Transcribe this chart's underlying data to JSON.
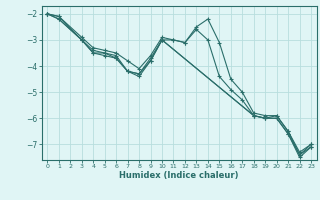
{
  "xlabel": "Humidex (Indice chaleur)",
  "bg_color": "#e0f5f5",
  "grid_color": "#b8dede",
  "line_color": "#2a6e6a",
  "xlim": [
    -0.5,
    23.5
  ],
  "ylim": [
    -7.6,
    -1.7
  ],
  "yticks": [
    -7,
    -6,
    -5,
    -4,
    -3,
    -2
  ],
  "xticks": [
    0,
    1,
    2,
    3,
    4,
    5,
    6,
    7,
    8,
    9,
    10,
    11,
    12,
    13,
    14,
    15,
    16,
    17,
    18,
    19,
    20,
    21,
    22,
    23
  ],
  "lines": [
    {
      "x": [
        0,
        1,
        3,
        4,
        5,
        6,
        7,
        8,
        9,
        10,
        11,
        12,
        13,
        14,
        15,
        16,
        17,
        18,
        19,
        20,
        21,
        22,
        23
      ],
      "y": [
        -2.0,
        -2.1,
        -2.9,
        -3.3,
        -3.4,
        -3.5,
        -3.8,
        -4.1,
        -3.6,
        -2.9,
        -3.0,
        -3.1,
        -2.5,
        -2.2,
        -3.1,
        -4.5,
        -5.0,
        -5.8,
        -5.9,
        -5.9,
        -6.5,
        -7.3,
        -7.0
      ]
    },
    {
      "x": [
        0,
        1,
        3,
        4,
        5,
        6,
        7,
        8,
        9,
        10,
        11,
        12,
        13,
        14,
        15,
        16,
        17,
        18,
        19,
        20,
        21,
        22,
        23
      ],
      "y": [
        -2.0,
        -2.1,
        -3.0,
        -3.4,
        -3.5,
        -3.6,
        -4.2,
        -4.3,
        -3.7,
        -3.0,
        -3.0,
        -3.1,
        -2.6,
        -3.0,
        -4.4,
        -4.9,
        -5.3,
        -5.9,
        -6.0,
        -5.9,
        -6.5,
        -7.4,
        -7.0
      ]
    },
    {
      "x": [
        0,
        1,
        3,
        4,
        5,
        6,
        7,
        8,
        9,
        10,
        18,
        19,
        20,
        21,
        22,
        23
      ],
      "y": [
        -2.0,
        -2.2,
        -3.0,
        -3.5,
        -3.5,
        -3.7,
        -4.2,
        -4.3,
        -3.8,
        -3.0,
        -5.9,
        -6.0,
        -6.0,
        -6.6,
        -7.4,
        -7.1
      ]
    },
    {
      "x": [
        0,
        1,
        3,
        4,
        5,
        6,
        7,
        8,
        9,
        10,
        18,
        19,
        20,
        21,
        22,
        23
      ],
      "y": [
        -2.0,
        -2.2,
        -3.0,
        -3.5,
        -3.6,
        -3.7,
        -4.2,
        -4.4,
        -3.8,
        -3.0,
        -5.9,
        -6.0,
        -6.0,
        -6.6,
        -7.5,
        -7.1
      ]
    }
  ]
}
